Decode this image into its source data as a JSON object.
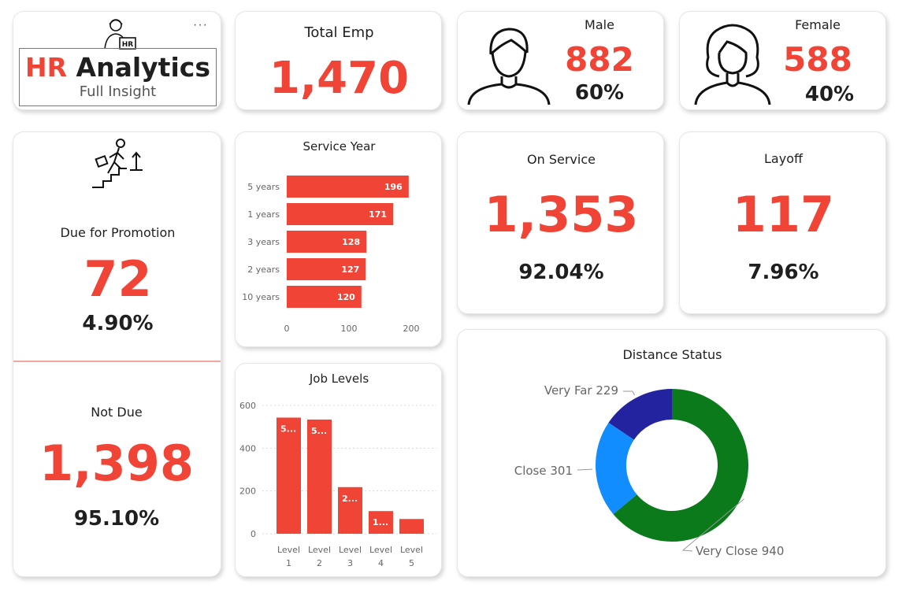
{
  "title": {
    "hr": "HR",
    "analytics": "Analytics",
    "subtitle": "Full Insight",
    "more": "···"
  },
  "total_emp": {
    "label": "Total Emp",
    "value": "1,470"
  },
  "male": {
    "label": "Male",
    "value": "882",
    "pct": "60%"
  },
  "female": {
    "label": "Female",
    "value": "588",
    "pct": "40%"
  },
  "promotion": {
    "due_label": "Due for Promotion",
    "due_value": "72",
    "due_pct": "4.90%",
    "not_due_label": "Not Due",
    "not_due_value": "1,398",
    "not_due_pct": "95.10%"
  },
  "on_service": {
    "label": "On Service",
    "value": "1,353",
    "pct": "92.04%"
  },
  "layoff": {
    "label": "Layoff",
    "value": "117",
    "pct": "7.96%"
  },
  "colors": {
    "accent": "#f04436",
    "far": "#2323a0",
    "close": "#118dff",
    "very_close": "#0a7a1a"
  },
  "chart_data": [
    {
      "type": "bar",
      "orientation": "horizontal",
      "title": "Service Year",
      "categories": [
        "5 years",
        "1 years",
        "3 years",
        "2 years",
        "10 years"
      ],
      "values": [
        196,
        171,
        128,
        127,
        120
      ],
      "xlim": [
        0,
        200
      ],
      "ticks": [
        0,
        100,
        200
      ]
    },
    {
      "type": "bar",
      "title": "Job Levels",
      "categories": [
        "Level 1",
        "Level 2",
        "Level 3",
        "Level 4",
        "Level 5"
      ],
      "cat_line1": [
        "Level",
        "Level",
        "Level",
        "Level",
        "Level"
      ],
      "cat_line2": [
        "1",
        "2",
        "3",
        "4",
        "5"
      ],
      "values": [
        543,
        534,
        218,
        106,
        69
      ],
      "labels": [
        "5...",
        "5...",
        "2...",
        "1...",
        ""
      ],
      "ylim": [
        0,
        600
      ],
      "ticks": [
        0,
        200,
        400,
        600
      ]
    },
    {
      "type": "pie",
      "donut": true,
      "title": "Distance Status",
      "labels": [
        "Very Close 940",
        "Close 301",
        "Very Far 229"
      ],
      "names": [
        "Very Close",
        "Close",
        "Very Far"
      ],
      "values": [
        940,
        301,
        229
      ]
    }
  ]
}
